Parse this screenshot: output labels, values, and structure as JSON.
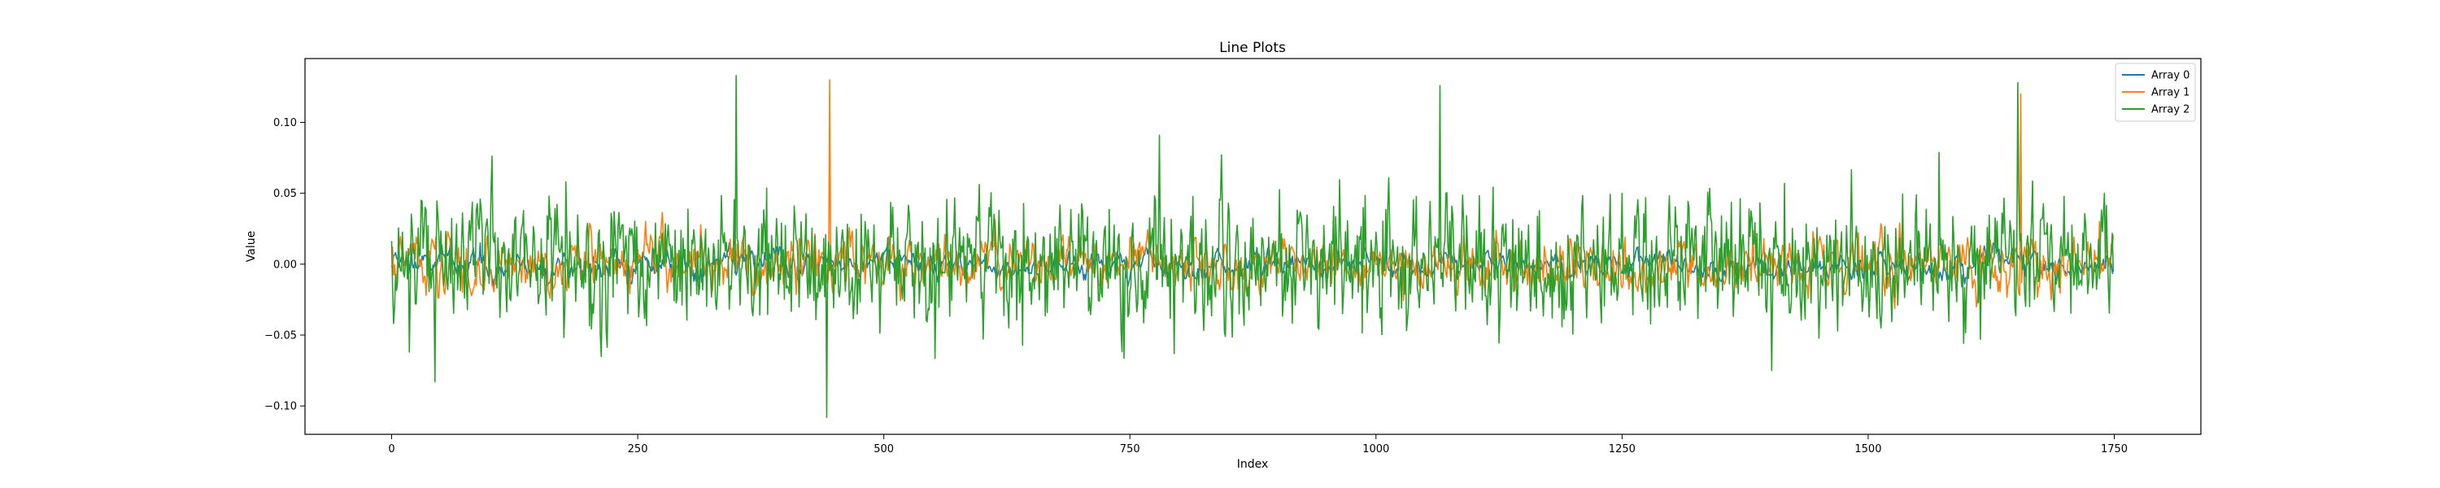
{
  "chart_data": {
    "type": "line",
    "title": "Line Plots",
    "xlabel": "Index",
    "ylabel": "Value",
    "xlim": [
      -88,
      1838
    ],
    "ylim": [
      -0.12,
      0.145
    ],
    "xticks": [
      0,
      250,
      500,
      750,
      1000,
      1250,
      1500,
      1750
    ],
    "yticks": [
      -0.1,
      -0.05,
      0.0,
      0.05,
      0.1
    ],
    "xtick_labels": [
      "0",
      "250",
      "500",
      "750",
      "1000",
      "1250",
      "1500",
      "1750"
    ],
    "ytick_labels": [
      "−0.10",
      "−0.05",
      "0.00",
      "0.05",
      "0.10"
    ],
    "grid": false,
    "legend_position": "top-right",
    "n_points": 1750,
    "series": [
      {
        "name": "Array 0",
        "color": "#1f77b4",
        "noise_amplitude": 0.006,
        "smoothness": 0.75,
        "spikes": [
          [
            20,
            0.012
          ],
          [
            60,
            0.018
          ],
          [
            90,
            0.015
          ],
          [
            1010,
            0.016
          ]
        ]
      },
      {
        "name": "Array 1",
        "color": "#ff7f0e",
        "noise_amplitude": 0.009,
        "smoothness": 0.6,
        "spikes": [
          [
            0,
            0.012
          ],
          [
            445,
            0.13
          ],
          [
            448,
            -0.02
          ],
          [
            1655,
            0.12
          ],
          [
            1735,
            0.03
          ],
          [
            1748,
            0.01
          ]
        ]
      },
      {
        "name": "Array 2",
        "color": "#2ca02c",
        "noise_amplitude": 0.013,
        "smoothness": 0.25,
        "spikes": [
          [
            18,
            -0.062
          ],
          [
            44,
            -0.083
          ],
          [
            160,
            0.048
          ],
          [
            350,
            0.133
          ],
          [
            442,
            -0.108
          ],
          [
            795,
            -0.063
          ],
          [
            1065,
            0.126
          ],
          [
            1250,
            0.05
          ],
          [
            1402,
            -0.075
          ],
          [
            1415,
            0.057
          ],
          [
            1652,
            0.128
          ]
        ]
      }
    ]
  }
}
